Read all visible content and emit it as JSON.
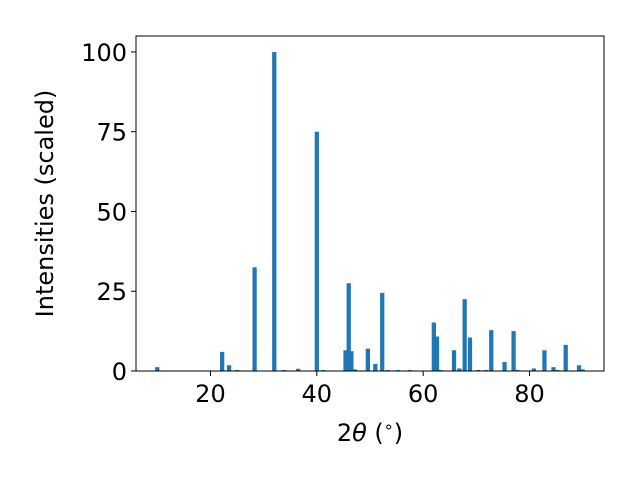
{
  "chart_data": {
    "type": "bar",
    "xlabel_parts": {
      "prefix": "2",
      "symbol": "θ",
      "unit_open": " (",
      "unit_sup": "∘",
      "unit_close": ")"
    },
    "ylabel": "Intensities (scaled)",
    "xlim": [
      6.0,
      94.0
    ],
    "ylim": [
      0,
      105
    ],
    "xticks": [
      20,
      40,
      60,
      80
    ],
    "yticks": [
      0,
      25,
      50,
      75,
      100
    ],
    "bar_width": 0.8,
    "bar_color": "#1f77b4",
    "grid": false,
    "legend": false,
    "bars": [
      {
        "x": 10.0,
        "y": 1.2
      },
      {
        "x": 22.2,
        "y": 6.0
      },
      {
        "x": 23.5,
        "y": 1.8
      },
      {
        "x": 25.0,
        "y": 0.3
      },
      {
        "x": 28.3,
        "y": 32.5
      },
      {
        "x": 32.0,
        "y": 100
      },
      {
        "x": 33.8,
        "y": 0.3
      },
      {
        "x": 36.5,
        "y": 0.7
      },
      {
        "x": 40.0,
        "y": 75
      },
      {
        "x": 41.2,
        "y": 0.3
      },
      {
        "x": 45.4,
        "y": 6.5
      },
      {
        "x": 46.0,
        "y": 27.5
      },
      {
        "x": 46.5,
        "y": 6.2
      },
      {
        "x": 47.2,
        "y": 0.5
      },
      {
        "x": 49.6,
        "y": 7.0
      },
      {
        "x": 51.0,
        "y": 2.2
      },
      {
        "x": 52.3,
        "y": 24.5
      },
      {
        "x": 53.3,
        "y": 0.3
      },
      {
        "x": 55.2,
        "y": 0.3
      },
      {
        "x": 57.5,
        "y": 0.3
      },
      {
        "x": 62.0,
        "y": 15.2
      },
      {
        "x": 62.6,
        "y": 10.8
      },
      {
        "x": 63.3,
        "y": 0.3
      },
      {
        "x": 65.8,
        "y": 6.5
      },
      {
        "x": 66.8,
        "y": 0.8
      },
      {
        "x": 67.8,
        "y": 22.5
      },
      {
        "x": 68.8,
        "y": 10.5
      },
      {
        "x": 70.3,
        "y": 0.3
      },
      {
        "x": 71.8,
        "y": 0.3
      },
      {
        "x": 72.8,
        "y": 12.8
      },
      {
        "x": 75.3,
        "y": 2.8
      },
      {
        "x": 77.0,
        "y": 12.5
      },
      {
        "x": 77.7,
        "y": 0.3
      },
      {
        "x": 80.8,
        "y": 0.8
      },
      {
        "x": 82.8,
        "y": 6.5
      },
      {
        "x": 84.5,
        "y": 1.2
      },
      {
        "x": 85.2,
        "y": 0.3
      },
      {
        "x": 86.8,
        "y": 8.2
      },
      {
        "x": 89.3,
        "y": 1.8
      },
      {
        "x": 90.0,
        "y": 0.5
      }
    ]
  }
}
